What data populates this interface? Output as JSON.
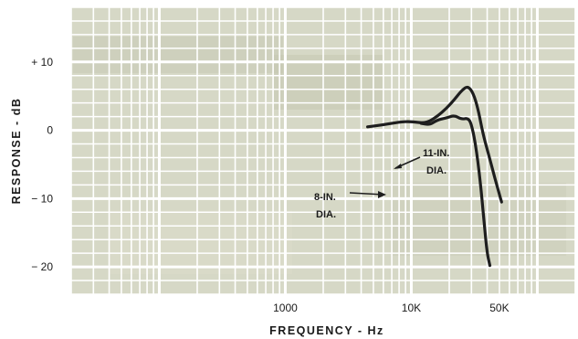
{
  "chart_data": {
    "type": "line",
    "xlabel": "FREQUENCY - Hz",
    "ylabel": "RESPONSE - dB",
    "x_scale": "log",
    "xlim": [
      20,
      200000
    ],
    "ylim": [
      -24,
      18
    ],
    "x_ticks": [
      {
        "value": 1000,
        "label": "1000"
      },
      {
        "value": 10000,
        "label": "10K"
      },
      {
        "value": 50000,
        "label": "50K"
      }
    ],
    "y_ticks": [
      {
        "value": 10,
        "label": "+ 10"
      },
      {
        "value": 0,
        "label": "0"
      },
      {
        "value": -10,
        "label": "− 10"
      },
      {
        "value": -20,
        "label": "− 20"
      }
    ],
    "grid": true,
    "series": [
      {
        "name": "11-IN. DIA.",
        "points": [
          [
            4500,
            0.5
          ],
          [
            6000,
            0.8
          ],
          [
            8000,
            1.2
          ],
          [
            10000,
            1.3
          ],
          [
            13000,
            1.0
          ],
          [
            16000,
            2.0
          ],
          [
            19000,
            3.2
          ],
          [
            22000,
            4.5
          ],
          [
            25000,
            5.8
          ],
          [
            28000,
            6.5
          ],
          [
            31000,
            5.5
          ],
          [
            34000,
            3.0
          ],
          [
            37000,
            -0.5
          ],
          [
            41000,
            -3.5
          ],
          [
            46000,
            -7.0
          ],
          [
            52000,
            -10.5
          ]
        ]
      },
      {
        "name": "8-IN. DIA.",
        "points": [
          [
            12000,
            1.0
          ],
          [
            14000,
            0.8
          ],
          [
            16000,
            1.5
          ],
          [
            19000,
            1.8
          ],
          [
            22000,
            2.2
          ],
          [
            25000,
            1.6
          ],
          [
            28000,
            1.8
          ],
          [
            30000,
            1.0
          ],
          [
            33000,
            -3.0
          ],
          [
            36000,
            -9.0
          ],
          [
            38000,
            -14.0
          ],
          [
            40000,
            -18.0
          ],
          [
            42000,
            -19.8
          ]
        ]
      }
    ],
    "annotations": [
      {
        "text_lines": [
          "11-IN.",
          "DIA."
        ],
        "series": "11-IN. DIA."
      },
      {
        "text_lines": [
          "8-IN.",
          "DIA."
        ],
        "series": "8-IN. DIA."
      }
    ],
    "colors": {
      "background": "#d6d8c6",
      "grid": "#ffffff",
      "curve": "#1e1e1e"
    }
  }
}
